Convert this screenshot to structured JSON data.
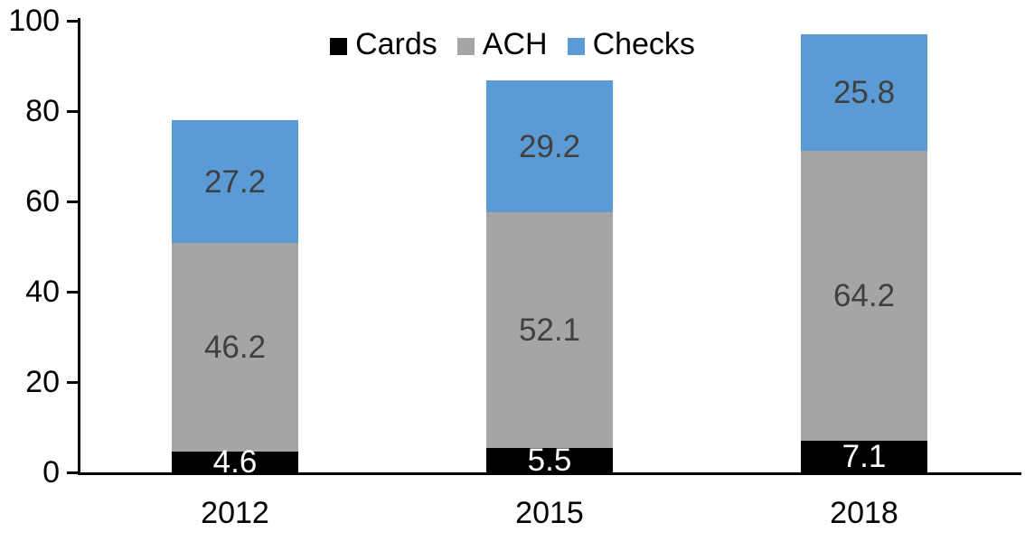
{
  "chart_data": {
    "type": "bar",
    "stacked": true,
    "categories": [
      "2012",
      "2015",
      "2018"
    ],
    "series": [
      {
        "name": "Cards",
        "color": "#000000",
        "label_color": "#ffffff",
        "values": [
          4.6,
          5.5,
          7.1
        ]
      },
      {
        "name": "ACH",
        "color": "#a5a5a5",
        "label_color": "#404040",
        "values": [
          46.2,
          52.1,
          64.2
        ]
      },
      {
        "name": "Checks",
        "color": "#5b9bd5",
        "label_color": "#404040",
        "values": [
          27.2,
          29.2,
          25.8
        ]
      }
    ],
    "ylim": [
      0,
      100
    ],
    "yticks": [
      0,
      20,
      40,
      60,
      80,
      100
    ],
    "legend_position": "top",
    "grid": false,
    "axis_color": "#000000",
    "tick_label_color": "#000000",
    "value_label_decimals": 1
  }
}
